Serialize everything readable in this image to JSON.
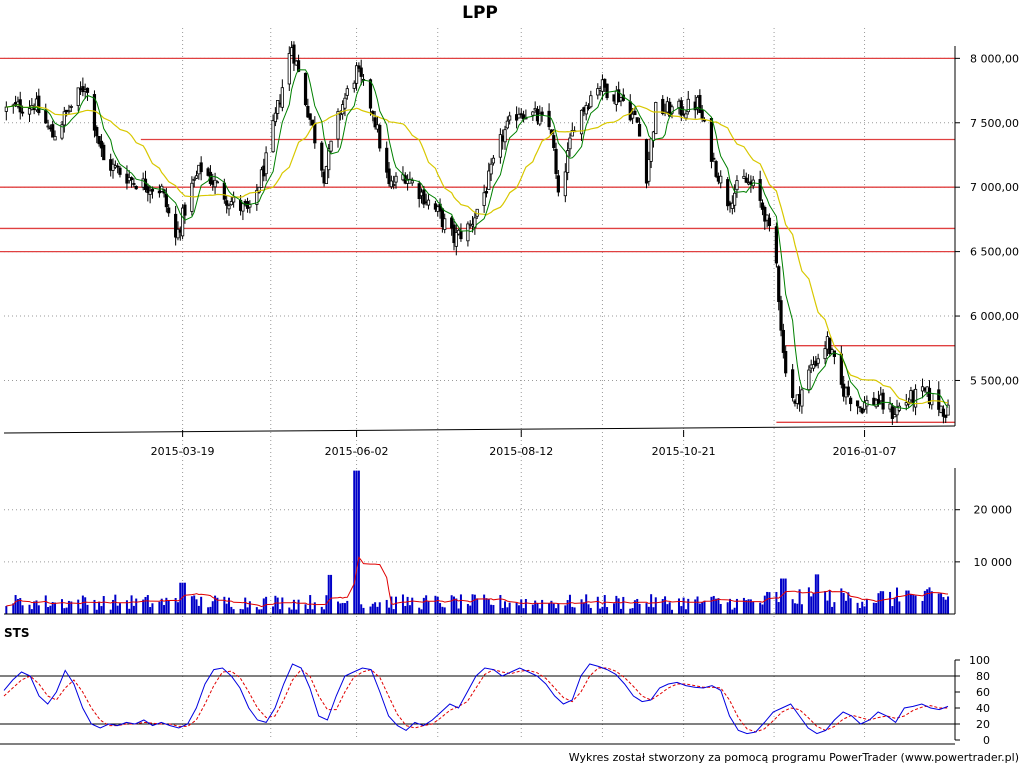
{
  "title": "LPP",
  "footer": "Wykres został stworzony za pomocą programu PowerTrader (www.powertrader.pl)",
  "colors": {
    "background": "#ffffff",
    "grid": "#9a9a9a",
    "support_line": "#e04040",
    "candle": "#000000",
    "ma_short": "#008000",
    "ma_long": "#d8c800",
    "volume_bar": "#0000c8",
    "volume_ma": "#e00000",
    "stoch_k": "#0000e0",
    "stoch_d": "#e00000"
  },
  "chart_data": [
    {
      "type": "candlestick",
      "title": "LPP",
      "x_tick_labels": [
        "2015-03-19",
        "2015-06-02",
        "2015-08-12",
        "2015-10-21",
        "2016-01-07"
      ],
      "y_tick_labels": [
        "8 000,00",
        "7 500,00",
        "7 000,00",
        "6 500,00",
        "6 000,00",
        "5 500,00"
      ],
      "ylim": [
        5100,
        8220
      ],
      "grid": true,
      "horizontal_levels": [
        8000,
        7370,
        7000,
        6680,
        6500
      ],
      "range_levels": [
        {
          "value": 5770,
          "from": "2015-12-04",
          "to": "2016-02-15"
        },
        {
          "value": 5175,
          "from": "2015-11-30",
          "to": "2016-02-15"
        }
      ],
      "overlays": [
        "short moving average",
        "long moving average"
      ],
      "close_path": [
        [
          "2015-01-02",
          7600
        ],
        [
          "2015-01-14",
          7650
        ],
        [
          "2015-01-22",
          7400
        ],
        [
          "2015-02-05",
          7800
        ],
        [
          "2015-02-13",
          7200
        ],
        [
          "2015-02-26",
          7050
        ],
        [
          "2015-03-10",
          6980
        ],
        [
          "2015-03-16",
          6600
        ],
        [
          "2015-03-23",
          7000
        ],
        [
          "2015-03-27",
          7150
        ],
        [
          "2015-04-08",
          6900
        ],
        [
          "2015-04-17",
          6800
        ],
        [
          "2015-04-24",
          7200
        ],
        [
          "2015-04-30",
          7700
        ],
        [
          "2015-05-05",
          8100
        ],
        [
          "2015-05-12",
          7600
        ],
        [
          "2015-05-19",
          7100
        ],
        [
          "2015-05-26",
          7600
        ],
        [
          "2015-06-02",
          7900
        ],
        [
          "2015-06-09",
          7600
        ],
        [
          "2015-06-16",
          7000
        ],
        [
          "2015-06-23",
          7100
        ],
        [
          "2015-06-30",
          6950
        ],
        [
          "2015-07-07",
          6800
        ],
        [
          "2015-07-14",
          6600
        ],
        [
          "2015-07-21",
          6700
        ],
        [
          "2015-07-28",
          7000
        ],
        [
          "2015-08-04",
          7400
        ],
        [
          "2015-08-11",
          7600
        ],
        [
          "2015-08-18",
          7550
        ],
        [
          "2015-08-25",
          7450
        ],
        [
          "2015-08-28",
          6900
        ],
        [
          "2015-09-04",
          7500
        ],
        [
          "2015-09-14",
          7800
        ],
        [
          "2015-09-24",
          7700
        ],
        [
          "2015-10-01",
          7500
        ],
        [
          "2015-10-05",
          7100
        ],
        [
          "2015-10-09",
          7600
        ],
        [
          "2015-10-20",
          7600
        ],
        [
          "2015-10-27",
          7650
        ],
        [
          "2015-11-03",
          7200
        ],
        [
          "2015-11-09",
          6900
        ],
        [
          "2015-11-16",
          7050
        ],
        [
          "2015-11-20",
          7000
        ],
        [
          "2015-11-25",
          6800
        ],
        [
          "2015-11-30",
          6400
        ],
        [
          "2015-12-03",
          5700
        ],
        [
          "2015-12-08",
          5300
        ],
        [
          "2015-12-15",
          5600
        ],
        [
          "2015-12-22",
          5800
        ],
        [
          "2015-12-28",
          5450
        ],
        [
          "2016-01-05",
          5300
        ],
        [
          "2016-01-12",
          5350
        ],
        [
          "2016-01-19",
          5250
        ],
        [
          "2016-01-26",
          5350
        ],
        [
          "2016-02-02",
          5400
        ],
        [
          "2016-02-12",
          5250
        ]
      ]
    },
    {
      "type": "bar",
      "title": "",
      "y_tick_labels": [
        "20 000",
        "10 000"
      ],
      "ylim": [
        0,
        28000
      ],
      "grid": true,
      "spikes": [
        {
          "date": "2015-03-19",
          "value": 6000
        },
        {
          "date": "2015-05-22",
          "value": 7500
        },
        {
          "date": "2015-06-02",
          "value": 27500
        },
        {
          "date": "2015-12-03",
          "value": 6800
        },
        {
          "date": "2015-12-18",
          "value": 7600
        },
        {
          "date": "2016-01-25",
          "value": 4500
        }
      ],
      "baseline_range": [
        800,
        3800
      ],
      "overlays": [
        "volume moving average"
      ]
    },
    {
      "type": "line",
      "title": "STS",
      "y_tick_labels": [
        "100",
        "80",
        "60",
        "40",
        "20",
        "0"
      ],
      "ylim": [
        0,
        100
      ],
      "reference_levels": [
        80,
        20
      ],
      "series": [
        {
          "role": "%K",
          "values": [
            62,
            75,
            85,
            80,
            55,
            45,
            60,
            87,
            70,
            40,
            20,
            15,
            20,
            18,
            22,
            20,
            25,
            18,
            22,
            18,
            15,
            20,
            40,
            70,
            88,
            90,
            80,
            65,
            40,
            25,
            22,
            40,
            70,
            95,
            90,
            65,
            30,
            25,
            55,
            80,
            85,
            90,
            88,
            60,
            30,
            18,
            12,
            22,
            18,
            25,
            35,
            45,
            40,
            60,
            80,
            90,
            88,
            80,
            85,
            90,
            85,
            80,
            70,
            55,
            45,
            50,
            80,
            95,
            92,
            88,
            82,
            70,
            55,
            48,
            50,
            65,
            70,
            72,
            68,
            66,
            65,
            68,
            62,
            30,
            12,
            8,
            10,
            22,
            35,
            40,
            45,
            30,
            15,
            8,
            12,
            25,
            35,
            30,
            20,
            25,
            35,
            30,
            22,
            40,
            42,
            45,
            40,
            38,
            42
          ]
        },
        {
          "role": "%D",
          "values": [
            55,
            65,
            75,
            80,
            70,
            55,
            50,
            65,
            75,
            60,
            40,
            25,
            18,
            18,
            20,
            20,
            22,
            21,
            20,
            20,
            17,
            17,
            25,
            45,
            68,
            85,
            86,
            78,
            60,
            40,
            28,
            30,
            50,
            75,
            88,
            80,
            55,
            38,
            38,
            60,
            78,
            85,
            88,
            78,
            55,
            32,
            18,
            15,
            18,
            20,
            28,
            37,
            42,
            48,
            65,
            82,
            88,
            85,
            83,
            86,
            87,
            84,
            77,
            65,
            53,
            48,
            60,
            80,
            90,
            90,
            86,
            78,
            67,
            55,
            50,
            57,
            65,
            70,
            70,
            68,
            66,
            66,
            65,
            50,
            28,
            14,
            10,
            14,
            24,
            35,
            40,
            38,
            28,
            17,
            12,
            17,
            26,
            31,
            28,
            25,
            28,
            30,
            27,
            30,
            37,
            41,
            43,
            40,
            40
          ]
        }
      ]
    }
  ]
}
